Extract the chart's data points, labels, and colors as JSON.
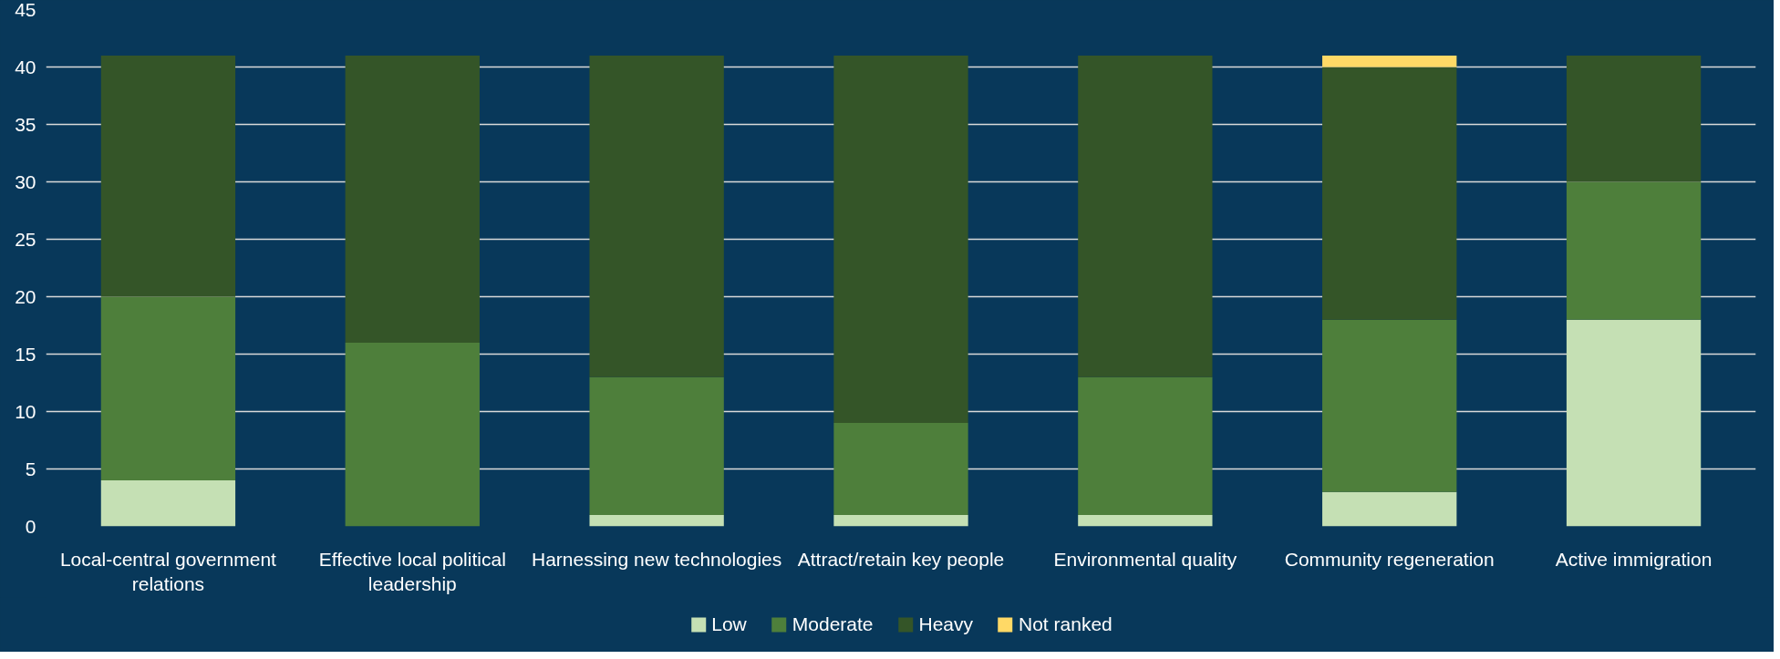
{
  "chart_data": {
    "type": "bar",
    "stacked": true,
    "categories": [
      "Local-central government relations",
      "Effective local political leadership",
      "Harnessing new technologies",
      "Attract/retain key people",
      "Environmental quality",
      "Community regeneration",
      "Active immigration"
    ],
    "series": [
      {
        "name": "Low",
        "color": "#c5e0b4",
        "values": [
          4,
          0,
          1,
          1,
          1,
          3,
          18
        ]
      },
      {
        "name": "Moderate",
        "color": "#4e7f3b",
        "values": [
          16,
          16,
          12,
          8,
          12,
          15,
          12
        ]
      },
      {
        "name": "Heavy",
        "color": "#345528",
        "values": [
          21,
          25,
          28,
          32,
          28,
          22,
          11
        ]
      },
      {
        "name": "Not ranked",
        "color": "#ffd966",
        "values": [
          0,
          0,
          0,
          0,
          0,
          1,
          0
        ]
      }
    ],
    "ylim": [
      0,
      45
    ],
    "yticks": [
      0,
      5,
      10,
      15,
      20,
      25,
      30,
      35,
      40,
      45
    ],
    "grid": "y",
    "legend": "bottom"
  }
}
